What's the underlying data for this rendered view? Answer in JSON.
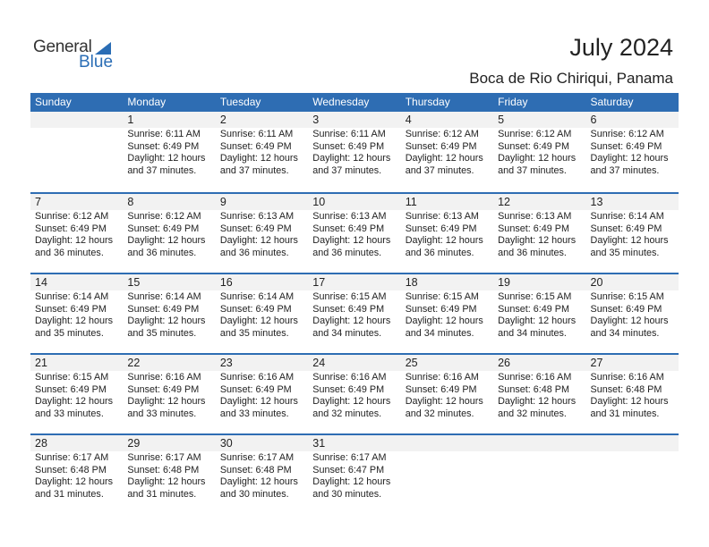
{
  "logo": {
    "general": "General",
    "blue": "Blue"
  },
  "header": {
    "title": "July 2024",
    "location": "Boca de Rio Chiriqui, Panama"
  },
  "colors": {
    "accent": "#2e6db3",
    "date_band": "#f2f2f2"
  },
  "weekdays": [
    "Sunday",
    "Monday",
    "Tuesday",
    "Wednesday",
    "Thursday",
    "Friday",
    "Saturday"
  ],
  "weeks": [
    [
      null,
      {
        "day": "1",
        "sunrise": "Sunrise: 6:11 AM",
        "sunset": "Sunset: 6:49 PM",
        "daylight1": "Daylight: 12 hours",
        "daylight2": "and 37 minutes."
      },
      {
        "day": "2",
        "sunrise": "Sunrise: 6:11 AM",
        "sunset": "Sunset: 6:49 PM",
        "daylight1": "Daylight: 12 hours",
        "daylight2": "and 37 minutes."
      },
      {
        "day": "3",
        "sunrise": "Sunrise: 6:11 AM",
        "sunset": "Sunset: 6:49 PM",
        "daylight1": "Daylight: 12 hours",
        "daylight2": "and 37 minutes."
      },
      {
        "day": "4",
        "sunrise": "Sunrise: 6:12 AM",
        "sunset": "Sunset: 6:49 PM",
        "daylight1": "Daylight: 12 hours",
        "daylight2": "and 37 minutes."
      },
      {
        "day": "5",
        "sunrise": "Sunrise: 6:12 AM",
        "sunset": "Sunset: 6:49 PM",
        "daylight1": "Daylight: 12 hours",
        "daylight2": "and 37 minutes."
      },
      {
        "day": "6",
        "sunrise": "Sunrise: 6:12 AM",
        "sunset": "Sunset: 6:49 PM",
        "daylight1": "Daylight: 12 hours",
        "daylight2": "and 37 minutes."
      }
    ],
    [
      {
        "day": "7",
        "sunrise": "Sunrise: 6:12 AM",
        "sunset": "Sunset: 6:49 PM",
        "daylight1": "Daylight: 12 hours",
        "daylight2": "and 36 minutes."
      },
      {
        "day": "8",
        "sunrise": "Sunrise: 6:12 AM",
        "sunset": "Sunset: 6:49 PM",
        "daylight1": "Daylight: 12 hours",
        "daylight2": "and 36 minutes."
      },
      {
        "day": "9",
        "sunrise": "Sunrise: 6:13 AM",
        "sunset": "Sunset: 6:49 PM",
        "daylight1": "Daylight: 12 hours",
        "daylight2": "and 36 minutes."
      },
      {
        "day": "10",
        "sunrise": "Sunrise: 6:13 AM",
        "sunset": "Sunset: 6:49 PM",
        "daylight1": "Daylight: 12 hours",
        "daylight2": "and 36 minutes."
      },
      {
        "day": "11",
        "sunrise": "Sunrise: 6:13 AM",
        "sunset": "Sunset: 6:49 PM",
        "daylight1": "Daylight: 12 hours",
        "daylight2": "and 36 minutes."
      },
      {
        "day": "12",
        "sunrise": "Sunrise: 6:13 AM",
        "sunset": "Sunset: 6:49 PM",
        "daylight1": "Daylight: 12 hours",
        "daylight2": "and 36 minutes."
      },
      {
        "day": "13",
        "sunrise": "Sunrise: 6:14 AM",
        "sunset": "Sunset: 6:49 PM",
        "daylight1": "Daylight: 12 hours",
        "daylight2": "and 35 minutes."
      }
    ],
    [
      {
        "day": "14",
        "sunrise": "Sunrise: 6:14 AM",
        "sunset": "Sunset: 6:49 PM",
        "daylight1": "Daylight: 12 hours",
        "daylight2": "and 35 minutes."
      },
      {
        "day": "15",
        "sunrise": "Sunrise: 6:14 AM",
        "sunset": "Sunset: 6:49 PM",
        "daylight1": "Daylight: 12 hours",
        "daylight2": "and 35 minutes."
      },
      {
        "day": "16",
        "sunrise": "Sunrise: 6:14 AM",
        "sunset": "Sunset: 6:49 PM",
        "daylight1": "Daylight: 12 hours",
        "daylight2": "and 35 minutes."
      },
      {
        "day": "17",
        "sunrise": "Sunrise: 6:15 AM",
        "sunset": "Sunset: 6:49 PM",
        "daylight1": "Daylight: 12 hours",
        "daylight2": "and 34 minutes."
      },
      {
        "day": "18",
        "sunrise": "Sunrise: 6:15 AM",
        "sunset": "Sunset: 6:49 PM",
        "daylight1": "Daylight: 12 hours",
        "daylight2": "and 34 minutes."
      },
      {
        "day": "19",
        "sunrise": "Sunrise: 6:15 AM",
        "sunset": "Sunset: 6:49 PM",
        "daylight1": "Daylight: 12 hours",
        "daylight2": "and 34 minutes."
      },
      {
        "day": "20",
        "sunrise": "Sunrise: 6:15 AM",
        "sunset": "Sunset: 6:49 PM",
        "daylight1": "Daylight: 12 hours",
        "daylight2": "and 34 minutes."
      }
    ],
    [
      {
        "day": "21",
        "sunrise": "Sunrise: 6:15 AM",
        "sunset": "Sunset: 6:49 PM",
        "daylight1": "Daylight: 12 hours",
        "daylight2": "and 33 minutes."
      },
      {
        "day": "22",
        "sunrise": "Sunrise: 6:16 AM",
        "sunset": "Sunset: 6:49 PM",
        "daylight1": "Daylight: 12 hours",
        "daylight2": "and 33 minutes."
      },
      {
        "day": "23",
        "sunrise": "Sunrise: 6:16 AM",
        "sunset": "Sunset: 6:49 PM",
        "daylight1": "Daylight: 12 hours",
        "daylight2": "and 33 minutes."
      },
      {
        "day": "24",
        "sunrise": "Sunrise: 6:16 AM",
        "sunset": "Sunset: 6:49 PM",
        "daylight1": "Daylight: 12 hours",
        "daylight2": "and 32 minutes."
      },
      {
        "day": "25",
        "sunrise": "Sunrise: 6:16 AM",
        "sunset": "Sunset: 6:49 PM",
        "daylight1": "Daylight: 12 hours",
        "daylight2": "and 32 minutes."
      },
      {
        "day": "26",
        "sunrise": "Sunrise: 6:16 AM",
        "sunset": "Sunset: 6:48 PM",
        "daylight1": "Daylight: 12 hours",
        "daylight2": "and 32 minutes."
      },
      {
        "day": "27",
        "sunrise": "Sunrise: 6:16 AM",
        "sunset": "Sunset: 6:48 PM",
        "daylight1": "Daylight: 12 hours",
        "daylight2": "and 31 minutes."
      }
    ],
    [
      {
        "day": "28",
        "sunrise": "Sunrise: 6:17 AM",
        "sunset": "Sunset: 6:48 PM",
        "daylight1": "Daylight: 12 hours",
        "daylight2": "and 31 minutes."
      },
      {
        "day": "29",
        "sunrise": "Sunrise: 6:17 AM",
        "sunset": "Sunset: 6:48 PM",
        "daylight1": "Daylight: 12 hours",
        "daylight2": "and 31 minutes."
      },
      {
        "day": "30",
        "sunrise": "Sunrise: 6:17 AM",
        "sunset": "Sunset: 6:48 PM",
        "daylight1": "Daylight: 12 hours",
        "daylight2": "and 30 minutes."
      },
      {
        "day": "31",
        "sunrise": "Sunrise: 6:17 AM",
        "sunset": "Sunset: 6:47 PM",
        "daylight1": "Daylight: 12 hours",
        "daylight2": "and 30 minutes."
      },
      null,
      null,
      null
    ]
  ]
}
